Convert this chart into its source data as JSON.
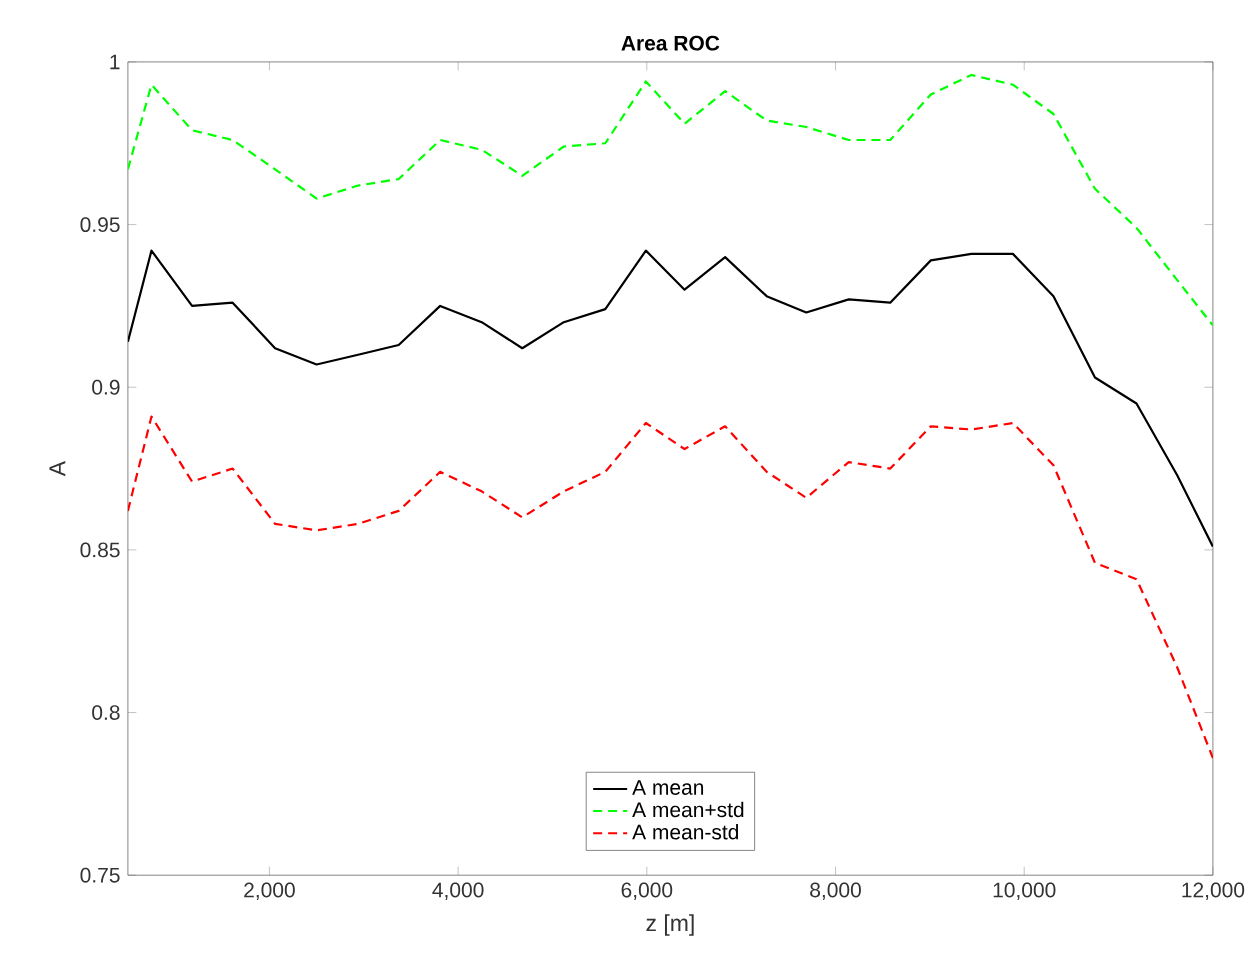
{
  "chart_data": {
    "type": "line",
    "title": "Area ROC",
    "xlabel": "z [m]",
    "ylabel": "A",
    "x": [
      500,
      750,
      1180,
      1610,
      2060,
      2500,
      2940,
      3370,
      3810,
      4250,
      4680,
      5120,
      5560,
      5990,
      6400,
      6830,
      7270,
      7690,
      8140,
      8580,
      9010,
      9440,
      9880,
      10310,
      10750,
      11190,
      11620,
      12000
    ],
    "series": [
      {
        "name": "A mean",
        "color": "#000000",
        "line_style": "solid",
        "values": [
          0.914,
          0.942,
          0.925,
          0.926,
          0.912,
          0.907,
          0.91,
          0.913,
          0.925,
          0.92,
          0.912,
          0.92,
          0.924,
          0.942,
          0.93,
          0.94,
          0.928,
          0.923,
          0.927,
          0.926,
          0.939,
          0.941,
          0.941,
          0.928,
          0.903,
          0.895,
          0.873,
          0.851
        ]
      },
      {
        "name": "A mean+std",
        "color": "#00ff00",
        "line_style": "dashed",
        "values": [
          0.967,
          0.993,
          0.979,
          0.976,
          0.967,
          0.958,
          0.962,
          0.964,
          0.976,
          0.973,
          0.965,
          0.974,
          0.975,
          0.994,
          0.981,
          0.991,
          0.982,
          0.98,
          0.976,
          0.976,
          0.99,
          0.996,
          0.993,
          0.984,
          0.961,
          0.949,
          0.933,
          0.919
        ]
      },
      {
        "name": "A mean-std",
        "color": "#ff0000",
        "line_style": "dashed",
        "values": [
          0.862,
          0.891,
          0.871,
          0.875,
          0.858,
          0.856,
          0.858,
          0.862,
          0.874,
          0.868,
          0.86,
          0.868,
          0.874,
          0.889,
          0.881,
          0.888,
          0.874,
          0.866,
          0.877,
          0.875,
          0.888,
          0.887,
          0.889,
          0.876,
          0.846,
          0.841,
          0.814,
          0.786
        ]
      }
    ],
    "xlim": [
      500,
      12000
    ],
    "ylim": [
      0.75,
      1
    ],
    "xticks": [
      {
        "value": 2000,
        "label": "2,000"
      },
      {
        "value": 4000,
        "label": "4,000"
      },
      {
        "value": 6000,
        "label": "6,000"
      },
      {
        "value": 8000,
        "label": "8,000"
      },
      {
        "value": 10000,
        "label": "10,000"
      },
      {
        "value": 12000,
        "label": "12,000"
      }
    ],
    "yticks": [
      0.75,
      0.8,
      0.85,
      0.9,
      0.95,
      1
    ],
    "grid": false,
    "legend": "bottom",
    "marker": "none"
  }
}
